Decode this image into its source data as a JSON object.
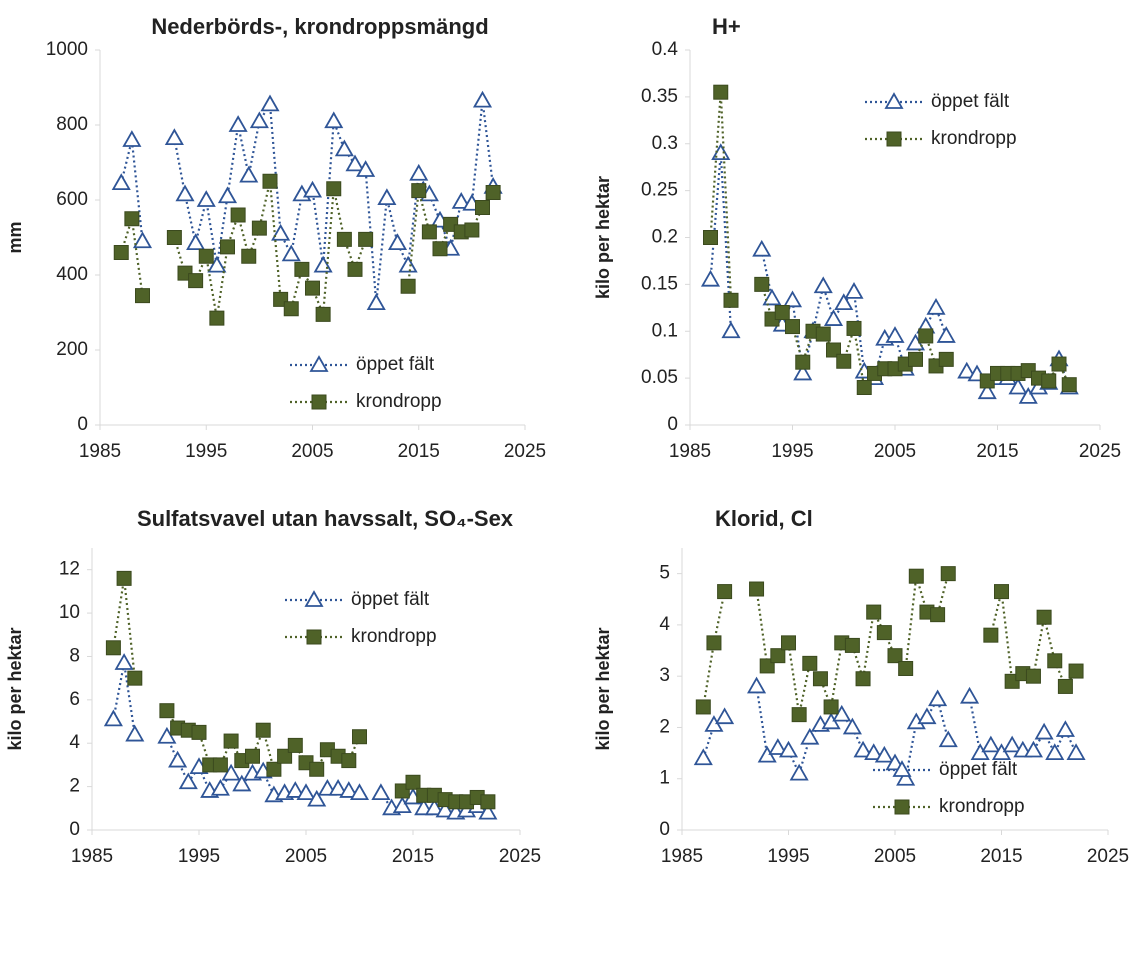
{
  "chart_data": [
    {
      "type": "line",
      "title": "Nederbörds-, krondroppsmängd",
      "ylabel": "mm",
      "x": [
        1987,
        1988,
        1989,
        1990,
        1991,
        1992,
        1993,
        1994,
        1995,
        1996,
        1997,
        1998,
        1999,
        2000,
        2001,
        2002,
        2003,
        2004,
        2005,
        2006,
        2007,
        2008,
        2009,
        2010,
        2011,
        2012,
        2013,
        2014,
        2015,
        2016,
        2017,
        2018,
        2019,
        2020,
        2021,
        2022
      ],
      "xlim": [
        1985,
        2025
      ],
      "xticks": [
        1985,
        1995,
        2005,
        2015,
        2025
      ],
      "ylim": [
        0,
        1000
      ],
      "yticks": [
        0,
        200,
        400,
        600,
        800,
        1000
      ],
      "legend": "lower right",
      "series": [
        {
          "name": "öppet fält",
          "color": "#2f5597",
          "marker": "triangle",
          "values": [
            645,
            760,
            490,
            null,
            null,
            765,
            615,
            485,
            600,
            425,
            610,
            800,
            665,
            810,
            855,
            510,
            455,
            615,
            625,
            425,
            810,
            735,
            695,
            680,
            325,
            605,
            485,
            425,
            670,
            615,
            545,
            470,
            595,
            590,
            865,
            635
          ]
        },
        {
          "name": "krondropp",
          "color": "#4f6228",
          "marker": "square",
          "values": [
            460,
            550,
            345,
            null,
            null,
            500,
            405,
            385,
            450,
            285,
            475,
            560,
            450,
            525,
            650,
            335,
            310,
            415,
            365,
            295,
            630,
            495,
            415,
            495,
            null,
            null,
            null,
            370,
            625,
            515,
            470,
            535,
            515,
            520,
            580,
            620
          ]
        }
      ]
    },
    {
      "type": "line",
      "title": "H+",
      "ylabel": "kilo per hektar",
      "x": [
        1987,
        1988,
        1989,
        1990,
        1991,
        1992,
        1993,
        1994,
        1995,
        1996,
        1997,
        1998,
        1999,
        2000,
        2001,
        2002,
        2003,
        2004,
        2005,
        2006,
        2007,
        2008,
        2009,
        2010,
        2011,
        2012,
        2013,
        2014,
        2015,
        2016,
        2017,
        2018,
        2019,
        2020,
        2021,
        2022
      ],
      "xlim": [
        1985,
        2025
      ],
      "xticks": [
        1985,
        1995,
        2005,
        2015,
        2025
      ],
      "ylim": [
        0,
        0.4
      ],
      "yticks": [
        0,
        0.05,
        0.1,
        0.15,
        0.2,
        0.25,
        0.3,
        0.35,
        0.4
      ],
      "legend": "upper right",
      "series": [
        {
          "name": "öppet fält",
          "color": "#2f5597",
          "marker": "triangle",
          "values": [
            0.155,
            0.29,
            0.1,
            null,
            null,
            0.187,
            0.135,
            0.107,
            0.133,
            0.055,
            0.1,
            0.148,
            0.113,
            0.13,
            0.142,
            0.057,
            0.05,
            0.092,
            0.095,
            0.06,
            0.087,
            0.105,
            0.125,
            0.095,
            null,
            0.057,
            0.054,
            0.035,
            0.05,
            0.05,
            0.04,
            0.03,
            0.04,
            0.045,
            0.07,
            0.04
          ]
        },
        {
          "name": "krondropp",
          "color": "#4f6228",
          "marker": "square",
          "values": [
            0.2,
            0.355,
            0.133,
            null,
            null,
            0.15,
            0.113,
            0.12,
            0.105,
            0.067,
            0.1,
            0.097,
            0.08,
            0.068,
            0.103,
            0.04,
            0.055,
            0.06,
            0.06,
            0.065,
            0.07,
            0.095,
            0.063,
            0.07,
            null,
            null,
            null,
            0.047,
            0.055,
            0.055,
            0.055,
            0.058,
            0.05,
            0.047,
            0.065,
            0.043
          ]
        }
      ]
    },
    {
      "type": "line",
      "title": "Sulfatsvavel utan havssalt, SO₄-Sex",
      "ylabel": "kilo per hektar",
      "x": [
        1987,
        1988,
        1989,
        1990,
        1991,
        1992,
        1993,
        1994,
        1995,
        1996,
        1997,
        1998,
        1999,
        2000,
        2001,
        2002,
        2003,
        2004,
        2005,
        2006,
        2007,
        2008,
        2009,
        2010,
        2011,
        2012,
        2013,
        2014,
        2015,
        2016,
        2017,
        2018,
        2019,
        2020,
        2021,
        2022
      ],
      "xlim": [
        1985,
        2025
      ],
      "xticks": [
        1985,
        1995,
        2005,
        2015,
        2025
      ],
      "ylim": [
        0,
        13
      ],
      "yticks": [
        0,
        2,
        4,
        6,
        8,
        10,
        12
      ],
      "legend": "upper right",
      "series": [
        {
          "name": "öppet fält",
          "color": "#2f5597",
          "marker": "triangle",
          "values": [
            5.1,
            7.7,
            4.4,
            null,
            null,
            4.3,
            3.2,
            2.2,
            2.9,
            1.8,
            1.9,
            2.6,
            2.1,
            2.6,
            2.7,
            1.6,
            1.7,
            1.8,
            1.7,
            1.4,
            1.9,
            1.9,
            1.8,
            1.7,
            null,
            1.7,
            1.0,
            1.1,
            1.5,
            1.0,
            1.0,
            0.9,
            0.8,
            0.9,
            1.1,
            0.8
          ]
        },
        {
          "name": "krondropp",
          "color": "#4f6228",
          "marker": "square",
          "values": [
            8.4,
            11.6,
            7.0,
            null,
            null,
            5.5,
            4.7,
            4.6,
            4.5,
            3.0,
            3.0,
            4.1,
            3.2,
            3.4,
            4.6,
            2.8,
            3.4,
            3.9,
            3.1,
            2.8,
            3.7,
            3.4,
            3.2,
            4.3,
            null,
            null,
            null,
            1.8,
            2.2,
            1.6,
            1.6,
            1.4,
            1.3,
            1.3,
            1.5,
            1.3
          ]
        }
      ]
    },
    {
      "type": "line",
      "title": "Klorid, Cl",
      "ylabel": "kilo per hektar",
      "x": [
        1987,
        1988,
        1989,
        1990,
        1991,
        1992,
        1993,
        1994,
        1995,
        1996,
        1997,
        1998,
        1999,
        2000,
        2001,
        2002,
        2003,
        2004,
        2005,
        2006,
        2007,
        2008,
        2009,
        2010,
        2011,
        2012,
        2013,
        2014,
        2015,
        2016,
        2017,
        2018,
        2019,
        2020,
        2021,
        2022
      ],
      "xlim": [
        1985,
        2025
      ],
      "xticks": [
        1985,
        1995,
        2005,
        2015,
        2025
      ],
      "ylim": [
        0,
        5.5
      ],
      "yticks": [
        0,
        1,
        2,
        3,
        4,
        5
      ],
      "legend": "lower right",
      "series": [
        {
          "name": "öppet fält",
          "color": "#2f5597",
          "marker": "triangle",
          "values": [
            1.4,
            2.05,
            2.2,
            null,
            null,
            2.8,
            1.45,
            1.6,
            1.55,
            1.1,
            1.8,
            2.05,
            2.1,
            2.25,
            2.0,
            1.55,
            1.5,
            1.45,
            1.3,
            1.0,
            2.1,
            2.2,
            2.55,
            1.75,
            null,
            2.6,
            1.5,
            1.65,
            1.5,
            1.65,
            1.55,
            1.55,
            1.9,
            1.5,
            1.95,
            1.5
          ]
        },
        {
          "name": "krondropp",
          "color": "#4f6228",
          "marker": "square",
          "values": [
            2.4,
            3.65,
            4.65,
            null,
            null,
            4.7,
            3.2,
            3.4,
            3.65,
            2.25,
            3.25,
            2.95,
            2.4,
            3.65,
            3.6,
            2.95,
            4.25,
            3.85,
            3.4,
            3.15,
            4.95,
            4.25,
            4.2,
            5.0,
            null,
            null,
            null,
            3.8,
            4.65,
            2.9,
            3.05,
            3.0,
            4.15,
            3.3,
            2.8,
            3.1
          ]
        }
      ]
    }
  ]
}
